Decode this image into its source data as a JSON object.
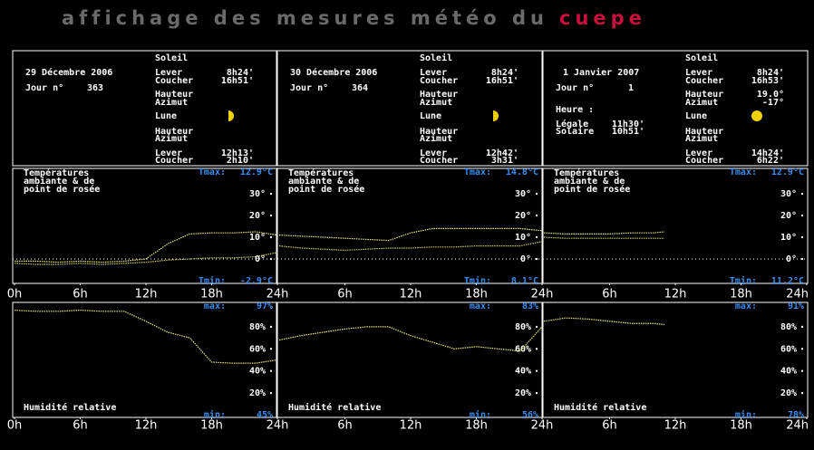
{
  "header": {
    "title": "affichage des mesures météo du",
    "highlight": "cuepe"
  },
  "panels": [
    {
      "date": "29 Décembre 2006",
      "day_label": "Jour n°",
      "day_number": "363",
      "sun_title": "Soleil",
      "sun_rise": [
        "Lever",
        "8h24'"
      ],
      "sun_set": [
        "Coucher",
        "16h51'"
      ],
      "sun_height": [
        "Hauteur"
      ],
      "sun_azimuth": [
        "Azimut"
      ],
      "moon_title": "Lune",
      "moon_height": [
        "Hauteur"
      ],
      "moon_azimuth": [
        "Azimut"
      ],
      "moon_rise": [
        "Lever",
        "12h13'"
      ],
      "moon_set": [
        "Coucher",
        "2h10'"
      ]
    },
    {
      "date": "30 Décembre 2006",
      "day_label": "Jour n°",
      "day_number": "364",
      "sun_title": "Soleil",
      "sun_rise": [
        "Lever",
        "8h24'"
      ],
      "sun_set": [
        "Coucher",
        "16h51'"
      ],
      "sun_height": [
        "Hauteur"
      ],
      "sun_azimuth": [
        "Azimut"
      ],
      "moon_title": "Lune",
      "moon_height": [
        "Hauteur"
      ],
      "moon_azimuth": [
        "Azimut"
      ],
      "moon_rise": [
        "Lever",
        "12h42'"
      ],
      "moon_set": [
        "Coucher",
        "3h31'"
      ]
    },
    {
      "date": "1 Janvier 2007",
      "day_label": "Jour n°",
      "day_number": "1",
      "time_title": "Heure :",
      "legal": [
        "Légale",
        "11h30'"
      ],
      "solar": [
        "Solaire",
        "10h51'"
      ],
      "sun_title": "Soleil",
      "sun_rise": [
        "Lever",
        "8h24'"
      ],
      "sun_set": [
        "Coucher",
        "16h53'"
      ],
      "sun_height": [
        "Hauteur",
        "19.0°"
      ],
      "sun_azimuth": [
        "Azimut",
        "-17°"
      ],
      "moon_title": "Lune",
      "moon_height": [
        "Hauteur"
      ],
      "moon_azimuth": [
        "Azimut"
      ],
      "moon_rise": [
        "Lever",
        "14h24'"
      ],
      "moon_set": [
        "Coucher",
        "6h22'"
      ]
    }
  ],
  "chart_data": [
    {
      "type": "line",
      "title": [
        "Températures",
        "ambiante & de",
        "point de rosée"
      ],
      "max": {
        "label": "Tmax:",
        "text": "12.9°C"
      },
      "min": {
        "label": "Tmin:",
        "text": "-2.9°C"
      },
      "x": [
        0,
        2,
        4,
        6,
        8,
        10,
        12,
        14,
        16,
        18,
        20,
        22,
        24
      ],
      "series": [
        {
          "color": "#e8e878",
          "values": [
            -1,
            -1,
            -1.5,
            -1,
            -1.5,
            -1,
            0,
            7,
            11.5,
            12,
            12,
            12.5,
            11
          ]
        },
        {
          "color": "#c8c860",
          "values": [
            -2,
            -2.5,
            -2.5,
            -2,
            -2.5,
            -2,
            -1.5,
            -0.5,
            0,
            0.5,
            0.5,
            1,
            3
          ]
        }
      ],
      "xlim": [
        0,
        24
      ],
      "xticks": [
        {
          "value": 0,
          "label": "0h"
        },
        {
          "value": 6,
          "label": "6h"
        },
        {
          "value": 12,
          "label": "12h"
        },
        {
          "value": 18,
          "label": "18h"
        },
        {
          "value": 24,
          "label": "24h"
        }
      ],
      "ylim": [
        -10,
        40
      ],
      "yticks": [
        {
          "value": 0,
          "label": "0°"
        },
        {
          "value": 10,
          "label": "10°"
        },
        {
          "value": 20,
          "label": "20°"
        },
        {
          "value": 30,
          "label": "30°"
        }
      ],
      "zero_line": true
    },
    {
      "type": "line",
      "title": [
        "Températures",
        "ambiante & de",
        "point de rosée"
      ],
      "max": {
        "label": "Tmax:",
        "text": "14.8°C"
      },
      "min": {
        "label": "Tmin:",
        "text": "8.1°C"
      },
      "x": [
        0,
        2,
        4,
        6,
        8,
        10,
        12,
        14,
        16,
        18,
        20,
        22,
        24
      ],
      "series": [
        {
          "color": "#e8e878",
          "values": [
            11,
            10.5,
            10,
            9.5,
            9,
            8.5,
            12,
            14,
            14,
            14,
            14,
            14,
            13
          ]
        },
        {
          "color": "#c8c860",
          "values": [
            6,
            5,
            4.5,
            4,
            4.5,
            5,
            5,
            5.5,
            5.5,
            6,
            6,
            6,
            8
          ]
        }
      ],
      "xlim": [
        0,
        24
      ],
      "xticks": [
        {
          "value": 6,
          "label": "6h"
        },
        {
          "value": 12,
          "label": "12h"
        },
        {
          "value": 18,
          "label": "18h"
        },
        {
          "value": 24,
          "label": "24h"
        }
      ],
      "ylim": [
        -10,
        40
      ],
      "yticks": [
        {
          "value": 0,
          "label": "0°"
        },
        {
          "value": 10,
          "label": "10°"
        },
        {
          "value": 20,
          "label": "20°"
        },
        {
          "value": 30,
          "label": "30°"
        }
      ],
      "zero_line": true
    },
    {
      "type": "line",
      "title": [
        "Températures",
        "ambiante & de",
        "point de rosée"
      ],
      "max": {
        "label": "Tmax:",
        "text": "12.9°C"
      },
      "min": {
        "label": "Tmin:",
        "text": "11.2°C"
      },
      "x": [
        0,
        2,
        4,
        6,
        8,
        10,
        11
      ],
      "series": [
        {
          "color": "#e8e878",
          "values": [
            12,
            11.5,
            11.5,
            11.5,
            12,
            12,
            12.5
          ]
        },
        {
          "color": "#c8c860",
          "values": [
            10,
            9.5,
            9.5,
            9.5,
            9.5,
            9.5,
            9.5
          ]
        }
      ],
      "xlim": [
        0,
        24
      ],
      "xticks": [
        {
          "value": 6,
          "label": "6h"
        },
        {
          "value": 12,
          "label": "12h"
        },
        {
          "value": 18,
          "label": "18h"
        },
        {
          "value": 24,
          "label": "24h"
        }
      ],
      "ylim": [
        -10,
        40
      ],
      "yticks": [
        {
          "value": 0,
          "label": "0°"
        },
        {
          "value": 10,
          "label": "10°"
        },
        {
          "value": 20,
          "label": "20°"
        },
        {
          "value": 30,
          "label": "30°"
        }
      ],
      "zero_line": true
    },
    {
      "type": "line",
      "title": "Humidité relative",
      "max": {
        "label": "max:",
        "text": "97%"
      },
      "min": {
        "label": "min:",
        "text": "45%"
      },
      "x": [
        0,
        2,
        4,
        6,
        8,
        10,
        12,
        14,
        16,
        18,
        20,
        22,
        24
      ],
      "series": [
        {
          "color": "#e8e878",
          "values": [
            95,
            94,
            94,
            95,
            94,
            94,
            85,
            75,
            70,
            48,
            47,
            47,
            50
          ]
        }
      ],
      "xlim": [
        0,
        24
      ],
      "xticks": [
        {
          "value": 0,
          "label": "0h"
        },
        {
          "value": 6,
          "label": "6h"
        },
        {
          "value": 12,
          "label": "12h"
        },
        {
          "value": 18,
          "label": "18h"
        },
        {
          "value": 24,
          "label": "24h"
        }
      ],
      "ylim": [
        0,
        100
      ],
      "yticks": [
        {
          "value": 20,
          "label": "20%"
        },
        {
          "value": 40,
          "label": "40%"
        },
        {
          "value": 60,
          "label": "60%"
        },
        {
          "value": 80,
          "label": "80%"
        }
      ]
    },
    {
      "type": "line",
      "title": "Humidité relative",
      "max": {
        "label": "max:",
        "text": "83%"
      },
      "min": {
        "label": "min:",
        "text": "56%"
      },
      "x": [
        0,
        2,
        4,
        6,
        8,
        10,
        12,
        14,
        16,
        18,
        20,
        22,
        24
      ],
      "series": [
        {
          "color": "#e8e878",
          "values": [
            68,
            72,
            75,
            78,
            80,
            80,
            72,
            66,
            60,
            62,
            60,
            58,
            80
          ]
        }
      ],
      "xlim": [
        0,
        24
      ],
      "xticks": [
        {
          "value": 6,
          "label": "6h"
        },
        {
          "value": 12,
          "label": "12h"
        },
        {
          "value": 18,
          "label": "18h"
        },
        {
          "value": 24,
          "label": "24h"
        }
      ],
      "ylim": [
        0,
        100
      ],
      "yticks": [
        {
          "value": 20,
          "label": "20%"
        },
        {
          "value": 40,
          "label": "40%"
        },
        {
          "value": 60,
          "label": "60%"
        },
        {
          "value": 80,
          "label": "80%"
        }
      ]
    },
    {
      "type": "line",
      "title": "Humidité relative",
      "max": {
        "label": "max:",
        "text": "91%"
      },
      "min": {
        "label": "min:",
        "text": "78%"
      },
      "x": [
        0,
        2,
        4,
        6,
        8,
        10,
        11
      ],
      "series": [
        {
          "color": "#e8e878",
          "values": [
            85,
            88,
            87,
            85,
            83,
            83,
            82
          ]
        }
      ],
      "xlim": [
        0,
        24
      ],
      "xticks": [
        {
          "value": 6,
          "label": "6h"
        },
        {
          "value": 12,
          "label": "12h"
        },
        {
          "value": 18,
          "label": "18h"
        },
        {
          "value": 24,
          "label": "24h"
        }
      ],
      "ylim": [
        0,
        100
      ],
      "yticks": [
        {
          "value": 20,
          "label": "20%"
        },
        {
          "value": 40,
          "label": "40%"
        },
        {
          "value": 60,
          "label": "60%"
        },
        {
          "value": 80,
          "label": "80%"
        }
      ]
    }
  ]
}
